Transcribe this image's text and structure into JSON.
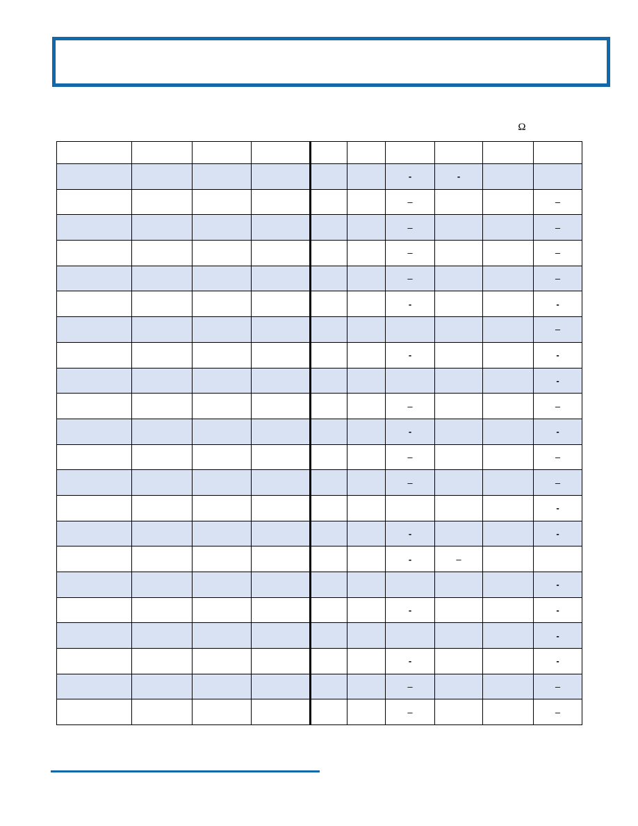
{
  "colors": {
    "accent_blue": "#1268A8",
    "row_shade": "#D9E2F3",
    "grid": "#000000"
  },
  "header_box": {
    "text": ""
  },
  "table": {
    "unit_label": "Ω",
    "columns": [
      "",
      "",
      "",
      "",
      "",
      "",
      "",
      "",
      "",
      ""
    ],
    "rows": [
      [
        "",
        "",
        "",
        "",
        "",
        "",
        "-",
        "-",
        "",
        ""
      ],
      [
        "",
        "",
        "",
        "",
        "",
        "",
        "–",
        "",
        "",
        "–"
      ],
      [
        "",
        "",
        "",
        "",
        "",
        "",
        "–",
        "",
        "",
        "–"
      ],
      [
        "",
        "",
        "",
        "",
        "",
        "",
        "–",
        "",
        "",
        "–"
      ],
      [
        "",
        "",
        "",
        "",
        "",
        "",
        "–",
        "",
        "",
        "–"
      ],
      [
        "",
        "",
        "",
        "",
        "",
        "",
        "-",
        "",
        "",
        "-"
      ],
      [
        "",
        "",
        "",
        "",
        "",
        "",
        "",
        "",
        "",
        "–"
      ],
      [
        "",
        "",
        "",
        "",
        "",
        "",
        "-",
        "",
        "",
        "-"
      ],
      [
        "",
        "",
        "",
        "",
        "",
        "",
        "",
        "",
        "",
        "-"
      ],
      [
        "",
        "",
        "",
        "",
        "",
        "",
        "–",
        "",
        "",
        "–"
      ],
      [
        "",
        "",
        "",
        "",
        "",
        "",
        "-",
        "",
        "",
        "-"
      ],
      [
        "",
        "",
        "",
        "",
        "",
        "",
        "–",
        "",
        "",
        "–"
      ],
      [
        "",
        "",
        "",
        "",
        "",
        "",
        "–",
        "",
        "",
        "–"
      ],
      [
        "",
        "",
        "",
        "",
        "",
        "",
        "",
        "",
        "",
        "-"
      ],
      [
        "",
        "",
        "",
        "",
        "",
        "",
        "-",
        "",
        "",
        "-"
      ],
      [
        "",
        "",
        "",
        "",
        "",
        "",
        "-",
        "–",
        "",
        ""
      ],
      [
        "",
        "",
        "",
        "",
        "",
        "",
        "",
        "",
        "",
        "-"
      ],
      [
        "",
        "",
        "",
        "",
        "",
        "",
        "-",
        "",
        "",
        "-"
      ],
      [
        "",
        "",
        "",
        "",
        "",
        "",
        "",
        "",
        "",
        "-"
      ],
      [
        "",
        "",
        "",
        "",
        "",
        "",
        "-",
        "",
        "",
        "-"
      ],
      [
        "",
        "",
        "",
        "",
        "",
        "",
        "–",
        "",
        "",
        "–"
      ],
      [
        "",
        "",
        "",
        "",
        "",
        "",
        "–",
        "",
        "",
        "–"
      ]
    ]
  },
  "footnote_rule": {}
}
